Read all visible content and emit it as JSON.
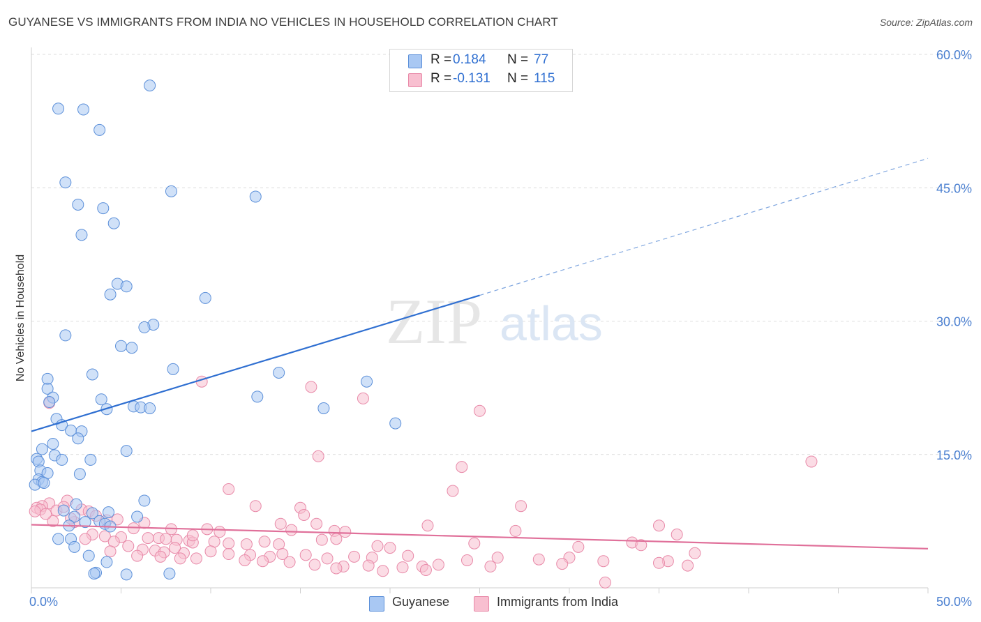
{
  "title": "GUYANESE VS IMMIGRANTS FROM INDIA NO VEHICLES IN HOUSEHOLD CORRELATION CHART",
  "source": "Source: ZipAtlas.com",
  "watermark": {
    "zip": "ZIP",
    "atlas": "atlas"
  },
  "legend": {
    "r_label": "R =",
    "n_label": "N =",
    "series": [
      {
        "r": "0.184",
        "n": "77",
        "color": "#a9c8f3",
        "stroke": "#5b8fd9"
      },
      {
        "r": "-0.131",
        "n": "115",
        "color": "#f8bfd0",
        "stroke": "#e889a8"
      }
    ]
  },
  "bottom_legend": [
    {
      "label": "Guyanese",
      "color": "#a9c8f3",
      "stroke": "#5b8fd9"
    },
    {
      "label": "Immigrants from India",
      "color": "#f8bfd0",
      "stroke": "#e889a8"
    }
  ],
  "chart_data": {
    "type": "scatter",
    "title": "GUYANESE VS IMMIGRANTS FROM INDIA NO VEHICLES IN HOUSEHOLD CORRELATION CHART",
    "xlabel": "",
    "ylabel": "No Vehicles in Household",
    "xlim": [
      0,
      50
    ],
    "ylim": [
      0,
      60
    ],
    "x_tick_labels": [
      {
        "value": 0,
        "label": "0.0%"
      },
      {
        "value": 50,
        "label": "50.0%"
      }
    ],
    "y_tick_labels": [
      {
        "value": 15,
        "label": "15.0%"
      },
      {
        "value": 30,
        "label": "30.0%"
      },
      {
        "value": 45,
        "label": "45.0%"
      },
      {
        "value": 60,
        "label": "60.0%"
      }
    ],
    "grid": true,
    "series": [
      {
        "name": "Guyanese",
        "color": "#a9c8f3",
        "stroke": "#5b8fd9",
        "line_color": "#2f6fd1",
        "trend": {
          "x_start": 0,
          "y_start": 17.6,
          "x_solid_end": 25,
          "y_solid_end": 32.9,
          "x_dash_end": 50,
          "y_dash_end": 48.3
        },
        "points": [
          [
            6.6,
            56.5
          ],
          [
            1.5,
            53.9
          ],
          [
            2.9,
            53.8
          ],
          [
            3.8,
            51.5
          ],
          [
            1.9,
            45.6
          ],
          [
            7.8,
            44.6
          ],
          [
            12.5,
            44.0
          ],
          [
            2.6,
            43.1
          ],
          [
            4.0,
            42.7
          ],
          [
            4.6,
            41.0
          ],
          [
            2.8,
            39.7
          ],
          [
            4.8,
            34.2
          ],
          [
            5.3,
            33.9
          ],
          [
            4.4,
            33.0
          ],
          [
            9.7,
            32.6
          ],
          [
            6.8,
            29.6
          ],
          [
            6.3,
            29.3
          ],
          [
            1.9,
            28.4
          ],
          [
            5.0,
            27.2
          ],
          [
            5.6,
            27.0
          ],
          [
            7.9,
            24.6
          ],
          [
            13.8,
            24.2
          ],
          [
            3.4,
            24.0
          ],
          [
            0.9,
            23.5
          ],
          [
            18.7,
            23.2
          ],
          [
            0.9,
            22.4
          ],
          [
            1.2,
            21.4
          ],
          [
            3.9,
            21.2
          ],
          [
            12.6,
            21.5
          ],
          [
            1.0,
            20.9
          ],
          [
            5.7,
            20.4
          ],
          [
            6.1,
            20.3
          ],
          [
            6.6,
            20.2
          ],
          [
            16.3,
            20.2
          ],
          [
            4.2,
            20.1
          ],
          [
            1.4,
            19.0
          ],
          [
            20.3,
            18.5
          ],
          [
            1.7,
            18.3
          ],
          [
            2.2,
            17.7
          ],
          [
            2.8,
            17.6
          ],
          [
            2.6,
            16.8
          ],
          [
            1.2,
            16.2
          ],
          [
            0.6,
            15.6
          ],
          [
            5.3,
            15.4
          ],
          [
            1.3,
            14.9
          ],
          [
            0.3,
            14.5
          ],
          [
            0.4,
            14.2
          ],
          [
            1.7,
            14.4
          ],
          [
            3.3,
            14.4
          ],
          [
            0.5,
            13.2
          ],
          [
            0.9,
            12.9
          ],
          [
            2.7,
            12.8
          ],
          [
            0.4,
            12.2
          ],
          [
            0.6,
            11.9
          ],
          [
            0.2,
            11.6
          ],
          [
            0.7,
            11.8
          ],
          [
            6.3,
            9.8
          ],
          [
            2.5,
            9.4
          ],
          [
            1.8,
            8.7
          ],
          [
            3.4,
            8.4
          ],
          [
            4.3,
            8.5
          ],
          [
            5.9,
            8.0
          ],
          [
            2.4,
            8.0
          ],
          [
            3.8,
            7.5
          ],
          [
            3.0,
            7.4
          ],
          [
            4.1,
            7.2
          ],
          [
            2.1,
            7.0
          ],
          [
            4.4,
            6.9
          ],
          [
            1.5,
            5.5
          ],
          [
            2.2,
            5.5
          ],
          [
            2.4,
            4.6
          ],
          [
            3.2,
            3.6
          ],
          [
            4.2,
            2.9
          ],
          [
            3.6,
            1.7
          ],
          [
            3.5,
            1.6
          ],
          [
            5.3,
            1.5
          ],
          [
            7.7,
            1.6
          ]
        ]
      },
      {
        "name": "Immigrants from India",
        "color": "#f8bfd0",
        "stroke": "#e889a8",
        "line_color": "#e0709a",
        "trend": {
          "x_start": 0,
          "y_start": 7.1,
          "x_end": 50,
          "y_end": 4.4
        },
        "points": [
          [
            9.5,
            23.2
          ],
          [
            15.6,
            22.6
          ],
          [
            18.5,
            21.3
          ],
          [
            1.0,
            20.8
          ],
          [
            25.0,
            19.9
          ],
          [
            43.5,
            14.2
          ],
          [
            16.0,
            14.8
          ],
          [
            24.0,
            13.6
          ],
          [
            11.0,
            11.1
          ],
          [
            23.5,
            10.9
          ],
          [
            2.0,
            9.8
          ],
          [
            1.0,
            9.5
          ],
          [
            0.6,
            9.2
          ],
          [
            0.3,
            9.0
          ],
          [
            0.5,
            8.8
          ],
          [
            1.4,
            8.7
          ],
          [
            12.5,
            9.2
          ],
          [
            15.0,
            9.0
          ],
          [
            27.3,
            9.2
          ],
          [
            2.8,
            8.8
          ],
          [
            3.2,
            8.6
          ],
          [
            3.6,
            8.1
          ],
          [
            15.2,
            8.2
          ],
          [
            4.2,
            7.6
          ],
          [
            1.2,
            7.5
          ],
          [
            2.4,
            7.4
          ],
          [
            13.9,
            7.2
          ],
          [
            15.9,
            7.2
          ],
          [
            22.1,
            7.0
          ],
          [
            35.0,
            7.0
          ],
          [
            5.7,
            6.7
          ],
          [
            7.8,
            6.6
          ],
          [
            9.8,
            6.6
          ],
          [
            10.5,
            6.3
          ],
          [
            14.5,
            6.5
          ],
          [
            16.9,
            6.4
          ],
          [
            17.5,
            6.3
          ],
          [
            27.0,
            6.4
          ],
          [
            36.0,
            6.0
          ],
          [
            3.4,
            6.0
          ],
          [
            4.1,
            5.8
          ],
          [
            5.0,
            5.7
          ],
          [
            6.5,
            5.6
          ],
          [
            7.1,
            5.6
          ],
          [
            7.5,
            5.5
          ],
          [
            8.1,
            5.4
          ],
          [
            8.8,
            5.3
          ],
          [
            9.0,
            5.1
          ],
          [
            10.2,
            5.2
          ],
          [
            11.0,
            5.0
          ],
          [
            12.0,
            4.9
          ],
          [
            13.0,
            5.2
          ],
          [
            13.8,
            4.9
          ],
          [
            16.2,
            5.4
          ],
          [
            17.0,
            5.5
          ],
          [
            19.3,
            4.7
          ],
          [
            20.0,
            4.5
          ],
          [
            24.7,
            5.0
          ],
          [
            30.5,
            4.6
          ],
          [
            33.5,
            5.1
          ],
          [
            34.0,
            4.8
          ],
          [
            3.0,
            5.5
          ],
          [
            4.6,
            5.2
          ],
          [
            5.4,
            4.7
          ],
          [
            6.2,
            4.3
          ],
          [
            6.9,
            4.2
          ],
          [
            7.4,
            4.0
          ],
          [
            8.5,
            3.9
          ],
          [
            10.0,
            4.1
          ],
          [
            11.0,
            3.8
          ],
          [
            12.2,
            3.7
          ],
          [
            13.3,
            3.5
          ],
          [
            14.0,
            3.8
          ],
          [
            15.3,
            3.7
          ],
          [
            16.5,
            3.3
          ],
          [
            18.0,
            3.5
          ],
          [
            19.0,
            3.4
          ],
          [
            28.3,
            3.2
          ],
          [
            30.0,
            3.4
          ],
          [
            35.5,
            3.0
          ],
          [
            37.0,
            3.9
          ],
          [
            4.4,
            4.1
          ],
          [
            5.9,
            3.6
          ],
          [
            7.2,
            3.5
          ],
          [
            8.3,
            3.3
          ],
          [
            9.2,
            3.3
          ],
          [
            11.9,
            3.1
          ],
          [
            12.9,
            3.0
          ],
          [
            14.4,
            2.9
          ],
          [
            15.8,
            2.6
          ],
          [
            17.4,
            2.4
          ],
          [
            18.8,
            2.5
          ],
          [
            21.8,
            2.4
          ],
          [
            22.7,
            2.6
          ],
          [
            25.6,
            2.4
          ],
          [
            29.6,
            2.7
          ],
          [
            31.9,
            3.0
          ],
          [
            35.0,
            2.8
          ],
          [
            36.6,
            2.5
          ],
          [
            17.0,
            2.2
          ],
          [
            20.7,
            2.3
          ],
          [
            22.0,
            2.0
          ],
          [
            19.6,
            1.9
          ],
          [
            24.3,
            3.1
          ],
          [
            26.0,
            3.4
          ],
          [
            21.0,
            3.6
          ],
          [
            8.0,
            4.5
          ],
          [
            9.0,
            5.9
          ],
          [
            0.2,
            8.6
          ],
          [
            1.8,
            9.1
          ],
          [
            4.8,
            7.7
          ],
          [
            6.3,
            7.3
          ],
          [
            0.8,
            8.3
          ],
          [
            2.2,
            7.8
          ],
          [
            32.0,
            0.6
          ]
        ]
      }
    ]
  }
}
